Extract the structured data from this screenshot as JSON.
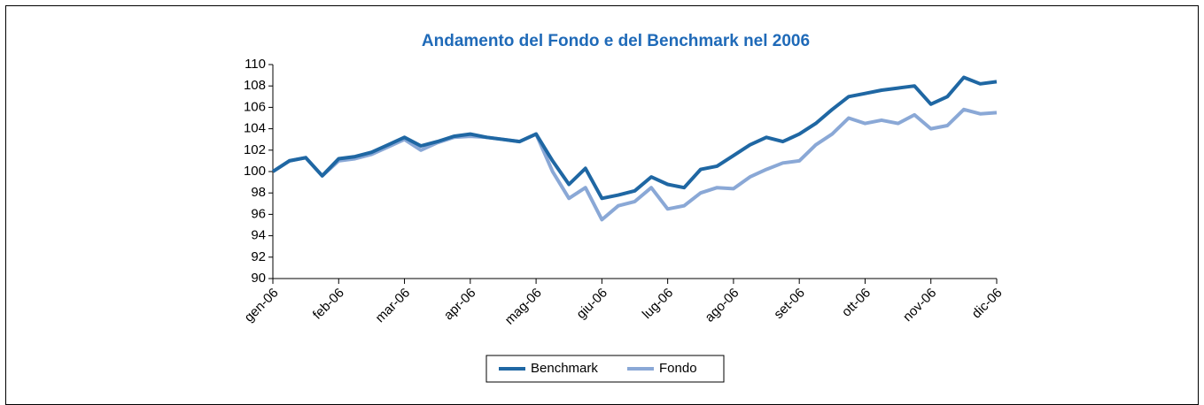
{
  "chart_data": {
    "type": "line",
    "title": "Andamento del Fondo e del Benchmark nel 2006",
    "categories": [
      "gen-06",
      null,
      null,
      null,
      "feb-06",
      null,
      null,
      null,
      "mar-06",
      null,
      null,
      null,
      "apr-06",
      null,
      null,
      null,
      "mag-06",
      null,
      null,
      null,
      "giu-06",
      null,
      null,
      null,
      "lug-06",
      null,
      null,
      null,
      "ago-06",
      null,
      null,
      null,
      "set-06",
      null,
      null,
      null,
      "ott-06",
      null,
      null,
      null,
      "nov-06",
      null,
      null,
      null,
      "dic-06"
    ],
    "series": [
      {
        "name": "Benchmark",
        "color": "#1f67a3",
        "values": [
          100,
          101,
          101.3,
          99.6,
          101.2,
          101.4,
          101.8,
          102.5,
          103.2,
          102.4,
          102.8,
          103.3,
          103.5,
          103.2,
          103.0,
          102.8,
          103.5,
          101,
          98.8,
          100.3,
          97.5,
          97.8,
          98.2,
          99.5,
          98.8,
          98.5,
          100.2,
          100.5,
          101.5,
          102.5,
          103.2,
          102.8,
          103.5,
          104.5,
          105.8,
          107,
          107.3,
          107.6,
          107.8,
          108,
          106.3,
          107,
          108.8,
          108.2,
          108.4
        ]
      },
      {
        "name": "Fondo",
        "color": "#8aa8d6",
        "values": [
          100,
          101,
          101.3,
          99.6,
          101,
          101.2,
          101.6,
          102.3,
          103,
          102,
          102.7,
          103.2,
          103.3,
          103.2,
          103.0,
          102.8,
          103.5,
          100,
          97.5,
          98.5,
          95.5,
          96.8,
          97.2,
          98.5,
          96.5,
          96.8,
          98,
          98.5,
          98.4,
          99.5,
          100.2,
          100.8,
          101,
          102.5,
          103.5,
          105,
          104.5,
          104.8,
          104.5,
          105.3,
          104,
          104.3,
          105.8,
          105.4,
          105.5
        ]
      }
    ],
    "ylim": [
      90,
      110
    ],
    "yticks": [
      90,
      92,
      94,
      96,
      98,
      100,
      102,
      104,
      106,
      108,
      110
    ],
    "legend": "bottom"
  }
}
